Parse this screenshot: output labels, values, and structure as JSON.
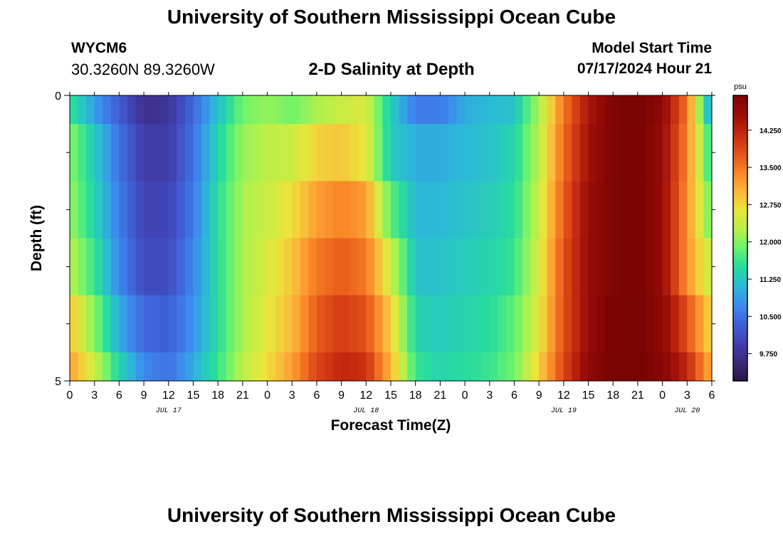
{
  "header": {
    "title": "University of Southern Mississippi Ocean Cube",
    "station_id": "WYCM6",
    "station_coords": "30.3260N  89.3260W",
    "chart_title": "2-D Salinity at Depth",
    "model_start_label": "Model Start Time",
    "model_start_value": "07/17/2024 Hour 21"
  },
  "footer": {
    "title": "University of Southern Mississippi Ocean Cube"
  },
  "chart_data": {
    "type": "heatmap",
    "title": "2-D Salinity at Depth",
    "xlabel": "Forecast Time(Z)",
    "ylabel": "Depth (ft)",
    "x_tick_labels": [
      "0",
      "3",
      "6",
      "9",
      "12",
      "15",
      "18",
      "21",
      "0",
      "3",
      "6",
      "9",
      "12",
      "15",
      "18",
      "21",
      "0",
      "3",
      "6",
      "9",
      "12",
      "15",
      "18",
      "21",
      "0",
      "3",
      "6"
    ],
    "x_hours": [
      0,
      3,
      6,
      9,
      12,
      15,
      18,
      21,
      24,
      27,
      30,
      33,
      36,
      39,
      42,
      45,
      48,
      51,
      54,
      57,
      60,
      63,
      66,
      69,
      72,
      75,
      78
    ],
    "x_range": [
      0,
      78
    ],
    "y_tick_labels": [
      "0",
      "5"
    ],
    "y_range": [
      0,
      5
    ],
    "day_labels": [
      {
        "text": "JUL 17",
        "hour": 12
      },
      {
        "text": "JUL 18",
        "hour": 36
      },
      {
        "text": "JUL 19",
        "hour": 60
      },
      {
        "text": "JUL 20",
        "hour": 75
      }
    ],
    "colorbar": {
      "unit": "psu",
      "range": [
        9.2,
        14.95
      ],
      "tick_values": [
        9.75,
        10.5,
        11.25,
        12.0,
        12.75,
        13.5,
        14.25
      ],
      "tick_labels": [
        "9.750",
        "10.500",
        "11.250",
        "12.000",
        "12.750",
        "13.500",
        "14.250"
      ],
      "colors": [
        "#2a1445",
        "#3b2a7a",
        "#4040b0",
        "#3f62d8",
        "#3d8bee",
        "#2bbbd6",
        "#27dc9e",
        "#6cf46c",
        "#b8f04a",
        "#ece43a",
        "#fcb43a",
        "#f98226",
        "#e2501a",
        "#c2280e",
        "#9a0c08",
        "#7a0403"
      ]
    },
    "depth_layers": [
      0.25,
      1.0,
      2.0,
      3.0,
      4.0,
      4.75
    ],
    "layer_bounds": [
      0,
      0.5,
      1.5,
      2.5,
      3.5,
      4.5,
      5
    ],
    "hour_knots": [
      0,
      3,
      6,
      9,
      12,
      15,
      18,
      21,
      24,
      27,
      30,
      33,
      36,
      39,
      42,
      45,
      48,
      51,
      54,
      57,
      60,
      63,
      66,
      69,
      72,
      75,
      78
    ],
    "salinity": [
      [
        11.6,
        10.9,
        10.3,
        9.7,
        9.8,
        10.4,
        11.2,
        11.9,
        12.1,
        11.9,
        12.2,
        12.4,
        12.5,
        11.3,
        10.6,
        10.6,
        11.0,
        11.1,
        11.2,
        12.2,
        13.5,
        14.4,
        14.9,
        15.0,
        14.7,
        13.5,
        10.8
      ],
      [
        12.0,
        11.3,
        10.5,
        9.9,
        9.9,
        10.5,
        11.4,
        12.1,
        12.3,
        12.4,
        12.8,
        12.9,
        12.6,
        11.3,
        11.0,
        11.0,
        11.1,
        11.2,
        11.4,
        12.3,
        13.6,
        14.5,
        14.9,
        15.0,
        14.6,
        13.4,
        11.4
      ],
      [
        12.1,
        11.4,
        10.6,
        10.0,
        10.0,
        10.6,
        11.5,
        12.2,
        12.4,
        12.7,
        13.2,
        13.4,
        13.2,
        11.8,
        11.1,
        11.1,
        11.2,
        11.3,
        11.5,
        12.4,
        13.7,
        14.6,
        14.9,
        15.0,
        14.6,
        13.3,
        11.8
      ],
      [
        12.3,
        11.6,
        10.7,
        10.1,
        10.1,
        10.7,
        11.5,
        12.2,
        12.5,
        12.9,
        13.5,
        13.7,
        13.5,
        12.4,
        11.2,
        11.2,
        11.3,
        11.4,
        11.6,
        12.5,
        13.8,
        14.6,
        14.9,
        15.0,
        14.6,
        13.3,
        12.3
      ],
      [
        12.9,
        12.0,
        11.0,
        10.4,
        10.3,
        10.8,
        11.5,
        12.2,
        12.6,
        13.0,
        13.7,
        14.0,
        13.8,
        12.8,
        11.4,
        11.3,
        11.4,
        11.5,
        11.8,
        12.6,
        13.8,
        14.6,
        15.0,
        15.0,
        14.7,
        13.8,
        12.7
      ],
      [
        13.2,
        12.4,
        11.4,
        10.7,
        10.5,
        11.0,
        11.6,
        12.3,
        12.7,
        13.2,
        13.9,
        14.2,
        14.1,
        13.0,
        11.6,
        11.4,
        11.5,
        11.6,
        11.9,
        12.8,
        13.9,
        14.7,
        15.0,
        15.0,
        14.8,
        14.2,
        13.0
      ]
    ]
  }
}
